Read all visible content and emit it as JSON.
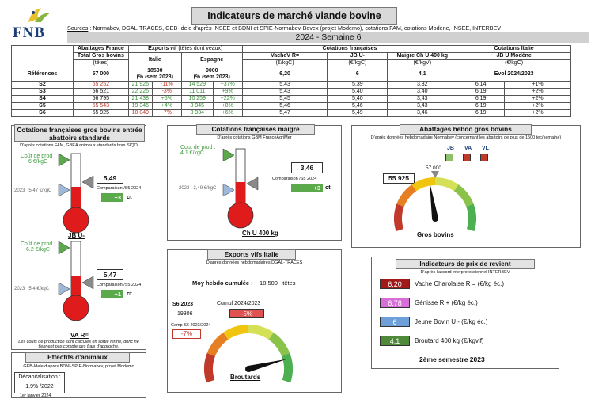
{
  "header": {
    "logo_text": "FNB",
    "title": "Indicateurs de marché viande bovine",
    "sources_label": "Sources",
    "sources_text": " : Normabev, DGAL-TRACES, GEB-Idele d'après INSEE et BDNI et SPIE-Normabev-Bovex (projet Modemo), cotations FAM, cotations Modène, INSEE, INTERBEV",
    "week": "2024 - Semaine 6"
  },
  "table": {
    "group_headers": [
      "Abattages France",
      "Exports vif",
      "(têtes dont veaux)",
      "Cotations françaises",
      "Cotations Italie"
    ],
    "col_headers": [
      "Total Gros bovins",
      "Italie",
      "Espagne",
      "VacheV R=",
      "JB U-",
      "Maigre Ch U 400 kg",
      "JB U Modène"
    ],
    "col_units": [
      "(têtes)",
      "(€/kgC)",
      "(€/kgC)",
      "(€/kgV)",
      "(€/kgC)"
    ],
    "ref_label": "Références",
    "ref_values": [
      "57 000",
      "18500",
      "(% /sem.2023)",
      "9000",
      "(% /sem.2023)",
      "6,20",
      "6",
      "4,1",
      "Evol 2024/2023"
    ],
    "rows": [
      {
        "week": "S2",
        "abat": "55 252",
        "it": "21 926",
        "it_pct": "-11%",
        "es": "14 529",
        "es_pct": "+37%",
        "vache": "5,43",
        "jb": "5,39",
        "maigre": "3,32",
        "mod": "6,14",
        "mod_pct": "+1%"
      },
      {
        "week": "S3",
        "abat": "56 521",
        "it": "22 226",
        "it_pct": "-3%",
        "es": "11 011",
        "es_pct": "+9%",
        "vache": "5,43",
        "jb": "5,40",
        "maigre": "3,40",
        "mod": "6,19",
        "mod_pct": "+2%"
      },
      {
        "week": "S4",
        "abat": "56 795",
        "it": "21 438",
        "it_pct": "+5%",
        "es": "10 259",
        "es_pct": "+22%",
        "vache": "5,45",
        "jb": "5,40",
        "maigre": "3,43",
        "mod": "6,19",
        "mod_pct": "+2%"
      },
      {
        "week": "S5",
        "abat": "55 543",
        "it": "19 345",
        "it_pct": "+4%",
        "es": "8 945",
        "es_pct": "+8%",
        "vache": "5,46",
        "jb": "5,46",
        "maigre": "3,43",
        "mod": "6,19",
        "mod_pct": "+2%"
      },
      {
        "week": "S6",
        "abat": "55 925",
        "it": "18 049",
        "it_pct": "-7%",
        "es": "8 934",
        "es_pct": "+6%",
        "vache": "5,47",
        "jb": "5,49",
        "maigre": "3,46",
        "mod": "6,19",
        "mod_pct": "+2%"
      }
    ]
  },
  "gros_bovins": {
    "title_line1": "Cotations françaises gros bovins entrée",
    "title_line2": "abattoirs standards",
    "note": "D'après cotations FAM, GBEA animaux standards hors SIQO",
    "cout_label1": "Coût de prod :",
    "cout_value1": "6 €/kgC",
    "ref1": "2023",
    "ref1_val": "5,47 €/kgC",
    "value1": "5,49",
    "comp1": "Comparaison /S5 2024",
    "delta1": "+3",
    "unit1": "ct",
    "label1": "JB U-",
    "cout_label2": "Coût de prod :",
    "cout_value2": "6.2 €/kgC",
    "ref2": "2023",
    "ref2_val": "5,4 €/kgC",
    "value2": "5,47",
    "comp2": "Comparaison /S5 2024",
    "delta2": "+1",
    "unit2": "ct",
    "label2": "VA R=",
    "footnote1": "Les coûts de production sont calculés en sortie ferme, donc ne",
    "footnote2": "tiennent pas compte des frais d'approche."
  },
  "maigre": {
    "title": "Cotations françaises maigre",
    "note": "D'après cotations GBM FranceAgriMer",
    "cout_label": "Cout de prod :",
    "cout_value": "4.1 €/kgC",
    "ref": "2023",
    "ref_val": "3,49 €/kgC",
    "value": "3,46",
    "comp": "Comparaison /S5 2024",
    "delta": "+3",
    "unit": "ct",
    "label": "Ch U 400 kg"
  },
  "abattages": {
    "title": "Abattages hebdo gros bovins",
    "note": "D'après données hebdomadaire Normabev (concernant les abattoirs de plus de 1500 tec/semaine)",
    "legend": [
      "JB",
      "VA",
      "VL"
    ],
    "legend_colors": [
      "#8fc06a",
      "#c0392b",
      "#c0392b"
    ],
    "ref_value": "57 000",
    "value": "55 925",
    "gauge_label": "Gros bovins",
    "needle_fraction": 0.46
  },
  "exports": {
    "title": "Exports vifs  Italie",
    "note": "D'après données hebdomadaires DGAL-TRACES",
    "moy_label": "Moy hebdo cumulée :",
    "moy_value": "18 500",
    "moy_unit": "têtes",
    "s6_label": "S6 2023",
    "s6_value": "19306",
    "cumul_label": "Cumul 2024/2023",
    "cumul_value": "-5%",
    "comp_label": "Comp S6 2023/2024",
    "comp_value": "-7%",
    "gauge_label": "Broutards",
    "needle_fraction": 0.85
  },
  "effectifs": {
    "title": "Effectifs d'animaux",
    "note": "GEB-Idele d'après BDNI-SPIE-Normabev, projet Modemo",
    "label": "Décapitalisation :",
    "value": "1.9% /2022",
    "date": "1er janvier 2024"
  },
  "prix": {
    "title": "Indicateurs de prix de revient",
    "note": "D'après l'accord interprofessionnel INTERBEV",
    "items": [
      {
        "value": "6,20",
        "label": "Vache Charolaise R = (€/kg éc.)",
        "color": "#a11a1a"
      },
      {
        "value": "6,78",
        "label": "Génisse R + (€/kg éc.)",
        "color": "#d86ed8"
      },
      {
        "value": "6",
        "label": "Jeune Bovin U - (€/kg éc.)",
        "color": "#6f9fd8"
      },
      {
        "value": "4,1",
        "label": "Broutard 400 kg (€/kgvif)",
        "color": "#4e8a3a"
      }
    ],
    "semester": "2ème semestre 2023"
  }
}
